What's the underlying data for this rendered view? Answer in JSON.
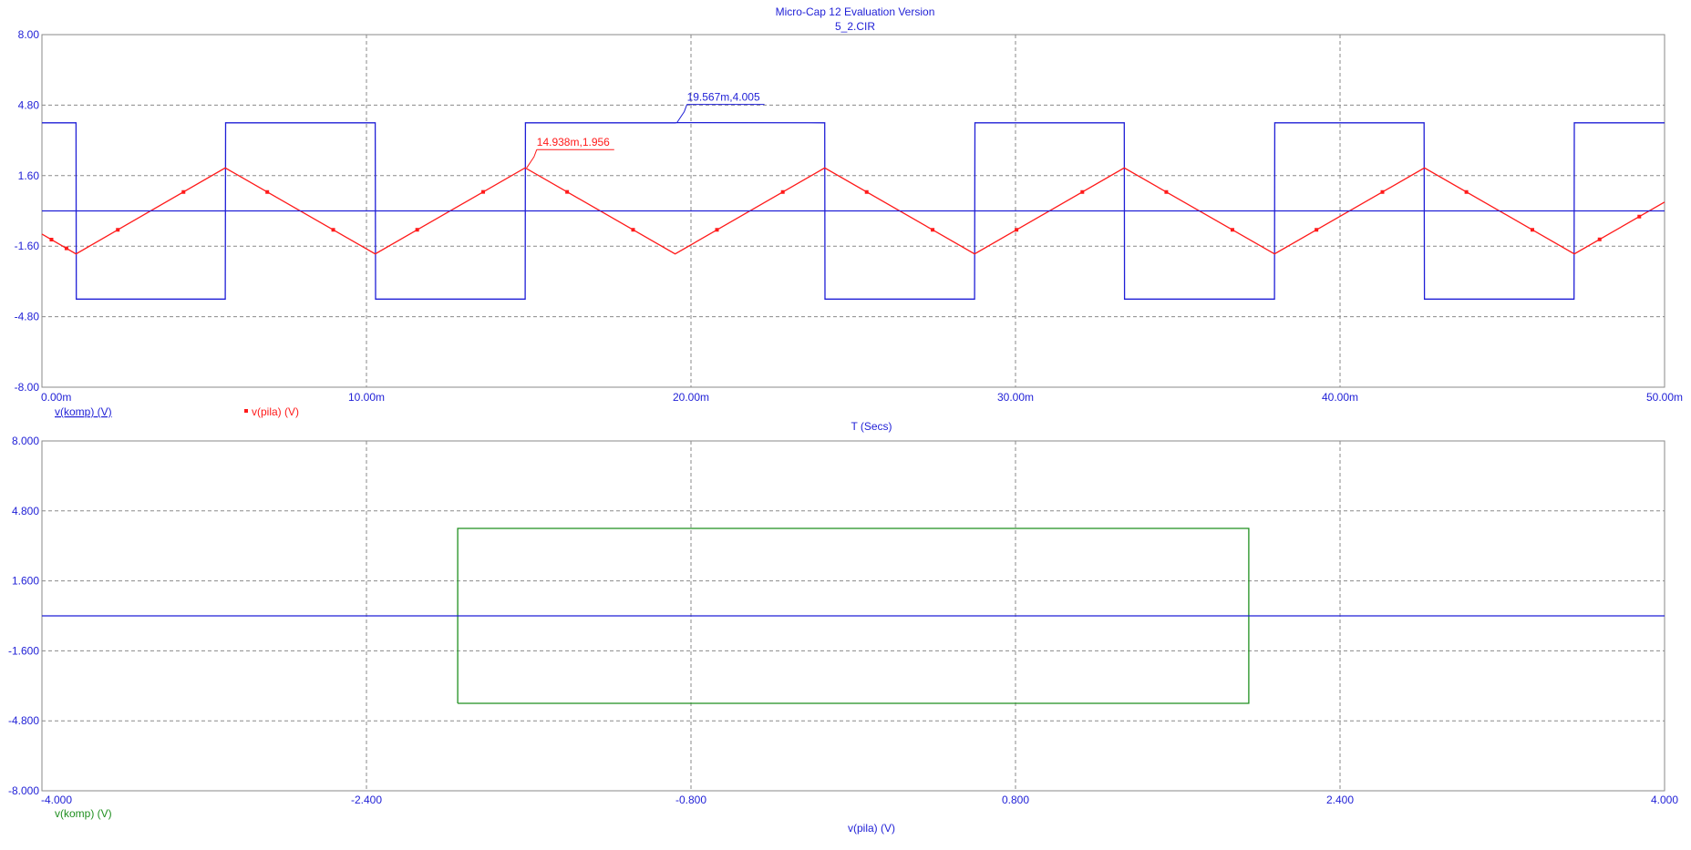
{
  "header": {
    "title": "Micro-Cap 12 Evaluation Version",
    "subtitle": "5_2.CIR"
  },
  "colors": {
    "axis_text": "#1f1fd6",
    "plot_border": "#8a8a8a",
    "grid": "#8a8a8a",
    "komp": "#1f1fd6",
    "pila": "#ff1a1a",
    "xy_trace": "#1f8f1f",
    "background": "#ffffff"
  },
  "chart_data": [
    {
      "type": "line",
      "name": "transient-plot",
      "xlabel": "T (Secs)",
      "xlim": [
        0,
        0.05
      ],
      "ylim": [
        -8,
        8
      ],
      "x_ticks": [
        "0.00m",
        "10.00m",
        "20.00m",
        "30.00m",
        "40.00m",
        "50.00m"
      ],
      "y_ticks": [
        "8.00",
        "4.80",
        "1.60",
        "-1.60",
        "-4.80",
        "-8.00"
      ],
      "grid": true,
      "series": [
        {
          "name": "v(komp) (V)",
          "color": "#1f1fd6",
          "marker": "none",
          "x": [
            0,
            0.00105,
            0.00106,
            0.00565,
            0.00566,
            0.01027,
            0.01028,
            0.01489,
            0.0149,
            0.01951,
            0.01957,
            0.02412,
            0.02413,
            0.02874,
            0.02875,
            0.03335,
            0.03336,
            0.03798,
            0.03799,
            0.04259,
            0.0426,
            0.04721,
            0.04722,
            0.05
          ],
          "y": [
            4.0,
            4.0,
            -4.0,
            -4.0,
            4.0,
            4.0,
            -4.0,
            -4.0,
            4.0,
            4.0,
            4.005,
            4.0,
            -4.0,
            -4.0,
            4.0,
            4.0,
            -4.0,
            -4.0,
            4.0,
            4.0,
            -4.0,
            -4.0,
            4.0,
            4.0
          ]
        },
        {
          "name": "v(pila) (V)",
          "color": "#ff1a1a",
          "marker": "square",
          "x": [
            0,
            0.00105,
            0.00565,
            0.01027,
            0.01489,
            0.01951,
            0.02412,
            0.02874,
            0.03335,
            0.03798,
            0.0426,
            0.04722,
            0.05
          ],
          "y": [
            -1.05,
            -1.95,
            1.95,
            -1.95,
            1.956,
            -1.95,
            1.95,
            -1.95,
            1.95,
            -1.95,
            1.95,
            -1.95,
            0.4
          ]
        },
        {
          "name": "zero-line",
          "color": "#1f1fd6",
          "marker": "none",
          "x": [
            0,
            0.05
          ],
          "y": [
            0,
            0
          ]
        }
      ],
      "legend": [
        "v(komp) (V)",
        "v(pila) (V)"
      ],
      "annotations": [
        {
          "label": "14.938m,1.956",
          "x": 0.014938,
          "y": 1.956,
          "color": "#ff1a1a"
        },
        {
          "label": "19.567m,4.005",
          "x": 0.019567,
          "y": 4.005,
          "color": "#1f1fd6"
        }
      ]
    },
    {
      "type": "line",
      "name": "xy-plot",
      "xlabel": "v(pila) (V)",
      "xlim": [
        -4,
        4
      ],
      "ylim": [
        -8,
        8
      ],
      "x_ticks": [
        "-4.000",
        "-2.400",
        "-0.800",
        "0.800",
        "2.400",
        "4.000"
      ],
      "y_ticks": [
        "8.000",
        "4.800",
        "1.600",
        "-1.600",
        "-4.800",
        "-8.000"
      ],
      "grid": true,
      "series": [
        {
          "name": "v(komp) (V)",
          "color": "#1f8f1f",
          "marker": "none",
          "x": [
            -1.95,
            -1.95,
            1.95,
            1.95,
            -1.95
          ],
          "y": [
            -4.0,
            4.0,
            4.0,
            -4.0,
            -4.0
          ]
        },
        {
          "name": "zero-line",
          "color": "#1f1fd6",
          "marker": "none",
          "x": [
            -4,
            4
          ],
          "y": [
            0,
            0
          ]
        }
      ],
      "legend": [
        "v(komp) (V)"
      ]
    }
  ]
}
